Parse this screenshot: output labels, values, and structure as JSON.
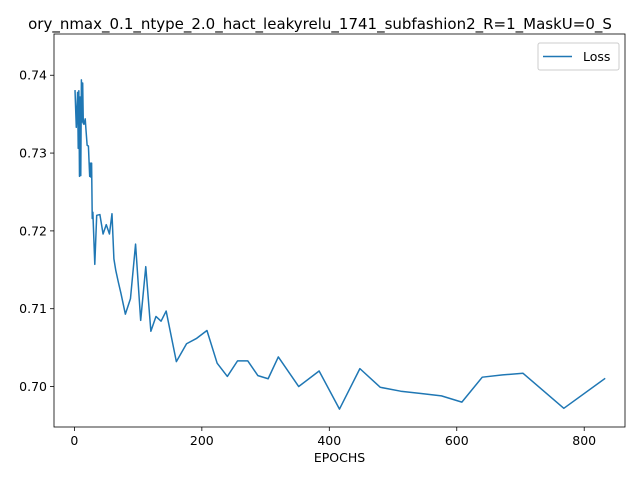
{
  "chart_data": {
    "type": "line",
    "title": "ory_nmax_0.1_ntype_2.0_hact_leakyrelu_1741_subfashion2_R=1_MaskU=0_S",
    "xlabel": "EPOCHS",
    "ylabel": "",
    "xlim": [
      -32,
      864
    ],
    "ylim": [
      0.6948,
      0.7453
    ],
    "xticks": [
      0,
      200,
      400,
      600,
      800
    ],
    "yticks": [
      0.7,
      0.71,
      0.72,
      0.73,
      0.74
    ],
    "ytick_labels": [
      "0.70",
      "0.71",
      "0.72",
      "0.73",
      "0.74"
    ],
    "grid": false,
    "legend_position": "upper right",
    "colors": {
      "Loss": "#1f77b4"
    },
    "series": [
      {
        "name": "Loss",
        "x": [
          1,
          3,
          5,
          6,
          7,
          8,
          9,
          10,
          11,
          12,
          13,
          14,
          15,
          17,
          18,
          20,
          22,
          24,
          25,
          26,
          27,
          28,
          29,
          32,
          35,
          40,
          45,
          50,
          55,
          59,
          62,
          65,
          69,
          73,
          80,
          88,
          96,
          104,
          112,
          120,
          128,
          136,
          144,
          160,
          176,
          192,
          208,
          224,
          240,
          256,
          272,
          288,
          304,
          320,
          352,
          384,
          416,
          448,
          480,
          512,
          544,
          576,
          608,
          640,
          672,
          704,
          768,
          832
        ],
        "y": [
          0.738,
          0.7333,
          0.7378,
          0.7306,
          0.738,
          0.727,
          0.7372,
          0.7271,
          0.7394,
          0.734,
          0.739,
          0.7338,
          0.7337,
          0.7344,
          0.7332,
          0.731,
          0.7309,
          0.727,
          0.7287,
          0.7269,
          0.7287,
          0.7216,
          0.7224,
          0.7157,
          0.722,
          0.7221,
          0.7196,
          0.7208,
          0.7196,
          0.7222,
          0.7164,
          0.7149,
          0.7134,
          0.712,
          0.7093,
          0.7113,
          0.7183,
          0.7085,
          0.7154,
          0.7071,
          0.709,
          0.7084,
          0.7097,
          0.7032,
          0.7055,
          0.7062,
          0.7072,
          0.703,
          0.7013,
          0.7033,
          0.7033,
          0.7014,
          0.701,
          0.7038,
          0.7,
          0.702,
          0.6971,
          0.7023,
          0.6999,
          0.6994,
          0.6991,
          0.6988,
          0.698,
          0.7012,
          0.7015,
          0.7017,
          0.6972,
          0.701
        ]
      }
    ]
  }
}
